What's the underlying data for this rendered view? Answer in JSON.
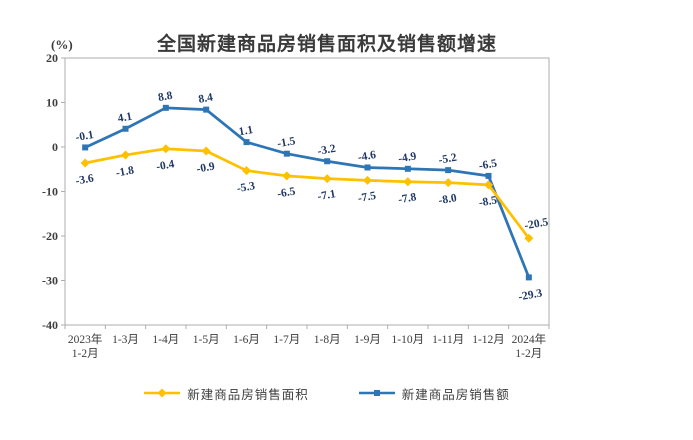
{
  "chart_data": {
    "type": "line",
    "title": "全国新建商品房销售面积及销售额增速",
    "ylabel": "(%)",
    "ylim": [
      -40,
      20
    ],
    "ytick_step": 10,
    "grid": false,
    "legend_position": "bottom",
    "categories": [
      [
        "2023年",
        "1-2月"
      ],
      [
        "1-3月"
      ],
      [
        "1-4月"
      ],
      [
        "1-5月"
      ],
      [
        "1-6月"
      ],
      [
        "1-7月"
      ],
      [
        "1-8月"
      ],
      [
        "1-9月"
      ],
      [
        "1-10月"
      ],
      [
        "1-11月"
      ],
      [
        "1-12月"
      ],
      [
        "2024年",
        "1-2月"
      ]
    ],
    "series": [
      {
        "name": "新建商品房销售额",
        "marker": "square",
        "color": "#2E75B6",
        "values": [
          -0.1,
          4.1,
          8.8,
          8.4,
          1.1,
          -1.5,
          -3.2,
          -4.6,
          -4.9,
          -5.2,
          -6.5,
          -29.3
        ],
        "labels": [
          "-0.1",
          "4.1",
          "8.8",
          "8.4",
          "1.1",
          "-1.5",
          "-3.2",
          "-4.6",
          "-4.9",
          "-5.2",
          "-6.5",
          "-29.3"
        ]
      },
      {
        "name": "新建商品房销售面积",
        "marker": "diamond",
        "color": "#FFC000",
        "values": [
          -3.6,
          -1.8,
          -0.4,
          -0.9,
          -5.3,
          -6.5,
          -7.1,
          -7.5,
          -7.8,
          -8.0,
          -8.5,
          -20.5
        ],
        "labels": [
          "-3.6",
          "-1.8",
          "-0.4",
          "-0.9",
          "-5.3",
          "-6.5",
          "-7.1",
          "-7.5",
          "-7.8",
          "-8.0",
          "-8.5",
          "-20.5"
        ]
      }
    ],
    "colors": {
      "data_label": "#1F3864",
      "axis_line": "#ADADAD",
      "axis_text": "#3d3d3d",
      "title_text": "#3a3a3a"
    }
  }
}
